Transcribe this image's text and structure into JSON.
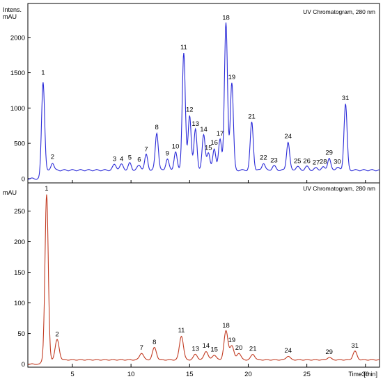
{
  "chart_data": [
    {
      "type": "line",
      "title": "UV Chromatogram, 280 nm",
      "ylabel_line1": "Intens.",
      "ylabel_line2": "mAU",
      "ylim": [
        -60,
        2480
      ],
      "yticks": [
        0,
        500,
        1000,
        1500,
        2000
      ],
      "color": "#2b2bd8",
      "baseline": 120,
      "peaks": [
        {
          "label": "1",
          "x": 2.5,
          "y": 1420
        },
        {
          "label": "2",
          "x": 3.3,
          "y": 230
        },
        {
          "label": "3",
          "x": 8.6,
          "y": 200
        },
        {
          "label": "4",
          "x": 9.2,
          "y": 200
        },
        {
          "label": "5",
          "x": 9.9,
          "y": 220
        },
        {
          "label": "6",
          "x": 10.7,
          "y": 190
        },
        {
          "label": "7",
          "x": 11.3,
          "y": 340
        },
        {
          "label": "8",
          "x": 12.2,
          "y": 650
        },
        {
          "label": "9",
          "x": 13.1,
          "y": 280
        },
        {
          "label": "10",
          "x": 13.8,
          "y": 380
        },
        {
          "label": "11",
          "x": 14.5,
          "y": 1780
        },
        {
          "label": "12",
          "x": 15.0,
          "y": 900
        },
        {
          "label": "13",
          "x": 15.5,
          "y": 700
        },
        {
          "label": "14",
          "x": 16.2,
          "y": 620
        },
        {
          "label": "15",
          "x": 16.6,
          "y": 360
        },
        {
          "label": "16",
          "x": 17.1,
          "y": 430
        },
        {
          "label": "17",
          "x": 17.6,
          "y": 560
        },
        {
          "label": "18",
          "x": 18.1,
          "y": 2200
        },
        {
          "label": "19",
          "x": 18.6,
          "y": 1360
        },
        {
          "label": "21",
          "x": 20.3,
          "y": 800
        },
        {
          "label": "22",
          "x": 21.3,
          "y": 220
        },
        {
          "label": "23",
          "x": 22.2,
          "y": 180
        },
        {
          "label": "24",
          "x": 23.4,
          "y": 520
        },
        {
          "label": "25",
          "x": 24.2,
          "y": 170
        },
        {
          "label": "26",
          "x": 25.0,
          "y": 170
        },
        {
          "label": "27",
          "x": 25.8,
          "y": 150
        },
        {
          "label": "28",
          "x": 26.4,
          "y": 160
        },
        {
          "label": "29",
          "x": 26.9,
          "y": 290
        },
        {
          "label": "30",
          "x": 27.6,
          "y": 160
        },
        {
          "label": "31",
          "x": 28.3,
          "y": 1060
        }
      ]
    },
    {
      "type": "line",
      "title": "UV Chromatogram, 280 nm",
      "ylabel": "mAU",
      "xlabel": "Time [min]",
      "xlim": [
        1.2,
        31.2
      ],
      "xticks": [
        5,
        10,
        15,
        20,
        25,
        30
      ],
      "ylim": [
        -5,
        296
      ],
      "yticks": [
        0,
        50,
        100,
        150,
        200,
        250
      ],
      "color": "#c23b22",
      "baseline": 7,
      "peaks": [
        {
          "label": "1",
          "x": 2.8,
          "y": 278
        },
        {
          "label": "2",
          "x": 3.7,
          "y": 40
        },
        {
          "label": "7",
          "x": 10.9,
          "y": 18
        },
        {
          "label": "8",
          "x": 12.0,
          "y": 27
        },
        {
          "label": "11",
          "x": 14.3,
          "y": 46
        },
        {
          "label": "13",
          "x": 15.5,
          "y": 16
        },
        {
          "label": "14",
          "x": 16.4,
          "y": 21
        },
        {
          "label": "15",
          "x": 17.1,
          "y": 15
        },
        {
          "label": "18",
          "x": 18.1,
          "y": 54
        },
        {
          "label": "19",
          "x": 18.6,
          "y": 30
        },
        {
          "label": "20",
          "x": 19.2,
          "y": 18
        },
        {
          "label": "21",
          "x": 20.4,
          "y": 16
        },
        {
          "label": "24",
          "x": 23.4,
          "y": 13
        },
        {
          "label": "29",
          "x": 26.9,
          "y": 11
        },
        {
          "label": "31",
          "x": 29.1,
          "y": 21
        }
      ]
    }
  ]
}
